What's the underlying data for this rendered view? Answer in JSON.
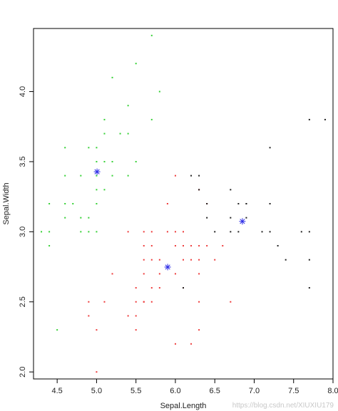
{
  "chart_data": {
    "type": "scatter",
    "xlabel": "Sepal.Length",
    "ylabel": "Sepal.Width",
    "xlim": [
      4.2,
      8.0
    ],
    "ylim": [
      1.95,
      4.45
    ],
    "xticks": [
      "4.5",
      "5.0",
      "5.5",
      "6.0",
      "6.5",
      "7.0",
      "7.5",
      "8.0"
    ],
    "yticks": [
      "2.0",
      "2.5",
      "3.0",
      "3.5",
      "4.0"
    ],
    "grid": false,
    "legend": "none",
    "colors": {
      "green": "#35d135",
      "red": "#ee3b3b",
      "black": "#222222",
      "center": "#2a2ae6"
    },
    "series": [
      {
        "color": "green",
        "points": [
          [
            5.7,
            4.4
          ],
          [
            5.5,
            4.2
          ],
          [
            5.2,
            4.1
          ],
          [
            5.8,
            4.0
          ],
          [
            5.4,
            3.9
          ],
          [
            5.7,
            3.8
          ],
          [
            5.1,
            3.8
          ],
          [
            5.3,
            3.7
          ],
          [
            5.4,
            3.7
          ],
          [
            5.1,
            3.7
          ],
          [
            4.6,
            3.6
          ],
          [
            5.0,
            3.6
          ],
          [
            4.9,
            3.6
          ],
          [
            5.2,
            3.5
          ],
          [
            5.1,
            3.5
          ],
          [
            5.0,
            3.5
          ],
          [
            5.5,
            3.5
          ],
          [
            4.6,
            3.4
          ],
          [
            4.8,
            3.4
          ],
          [
            5.0,
            3.4
          ],
          [
            5.4,
            3.4
          ],
          [
            5.2,
            3.4
          ],
          [
            5.1,
            3.3
          ],
          [
            5.0,
            3.3
          ],
          [
            4.4,
            3.2
          ],
          [
            4.6,
            3.2
          ],
          [
            4.7,
            3.2
          ],
          [
            5.0,
            3.2
          ],
          [
            4.6,
            3.1
          ],
          [
            4.8,
            3.1
          ],
          [
            4.9,
            3.1
          ],
          [
            4.3,
            3.0
          ],
          [
            4.4,
            3.0
          ],
          [
            4.8,
            3.0
          ],
          [
            4.9,
            3.0
          ],
          [
            5.0,
            3.0
          ],
          [
            4.4,
            2.9
          ],
          [
            4.5,
            2.3
          ]
        ]
      },
      {
        "color": "red",
        "points": [
          [
            6.0,
            3.4
          ],
          [
            5.9,
            3.2
          ],
          [
            6.3,
            3.3
          ],
          [
            6.4,
            3.2
          ],
          [
            5.4,
            3.0
          ],
          [
            5.6,
            3.0
          ],
          [
            5.7,
            3.0
          ],
          [
            5.9,
            3.0
          ],
          [
            6.0,
            3.0
          ],
          [
            6.1,
            3.0
          ],
          [
            5.6,
            2.9
          ],
          [
            5.7,
            2.9
          ],
          [
            6.0,
            2.9
          ],
          [
            6.1,
            2.9
          ],
          [
            6.2,
            2.9
          ],
          [
            6.3,
            2.9
          ],
          [
            6.4,
            2.9
          ],
          [
            5.6,
            2.8
          ],
          [
            5.7,
            2.8
          ],
          [
            5.8,
            2.8
          ],
          [
            6.1,
            2.8
          ],
          [
            6.2,
            2.8
          ],
          [
            6.3,
            2.8
          ],
          [
            6.5,
            2.8
          ],
          [
            5.2,
            2.7
          ],
          [
            5.6,
            2.7
          ],
          [
            5.8,
            2.7
          ],
          [
            6.0,
            2.7
          ],
          [
            6.3,
            2.7
          ],
          [
            5.5,
            2.6
          ],
          [
            5.7,
            2.6
          ],
          [
            5.8,
            2.6
          ],
          [
            6.1,
            2.6
          ],
          [
            4.9,
            2.5
          ],
          [
            5.1,
            2.5
          ],
          [
            5.5,
            2.5
          ],
          [
            5.6,
            2.5
          ],
          [
            5.7,
            2.5
          ],
          [
            6.3,
            2.5
          ],
          [
            4.9,
            2.4
          ],
          [
            5.5,
            2.4
          ],
          [
            5.0,
            2.3
          ],
          [
            5.5,
            2.3
          ],
          [
            6.3,
            2.3
          ],
          [
            6.0,
            2.2
          ],
          [
            6.2,
            2.2
          ],
          [
            5.0,
            2.0
          ],
          [
            5.6,
            2.5
          ],
          [
            6.7,
            2.5
          ],
          [
            5.4,
            2.4
          ],
          [
            6.6,
            2.9
          ]
        ]
      },
      {
        "color": "black",
        "points": [
          [
            7.7,
            3.8
          ],
          [
            7.9,
            3.8
          ],
          [
            7.2,
            3.6
          ],
          [
            6.3,
            3.4
          ],
          [
            6.2,
            3.4
          ],
          [
            6.7,
            3.3
          ],
          [
            6.3,
            3.3
          ],
          [
            6.9,
            3.2
          ],
          [
            7.2,
            3.2
          ],
          [
            6.4,
            3.1
          ],
          [
            6.7,
            3.1
          ],
          [
            6.9,
            3.1
          ],
          [
            6.5,
            3.0
          ],
          [
            6.7,
            3.0
          ],
          [
            7.1,
            3.0
          ],
          [
            7.2,
            3.0
          ],
          [
            7.6,
            3.0
          ],
          [
            7.7,
            3.0
          ],
          [
            6.8,
            3.0
          ],
          [
            7.3,
            2.9
          ],
          [
            7.4,
            2.8
          ],
          [
            7.7,
            2.8
          ],
          [
            6.1,
            2.6
          ],
          [
            7.7,
            2.6
          ],
          [
            6.8,
            3.2
          ],
          [
            6.4,
            3.2
          ],
          [
            6.9,
            3.2
          ]
        ]
      }
    ],
    "centers": [
      {
        "x": 5.006,
        "y": 3.428
      },
      {
        "x": 5.902,
        "y": 2.748
      },
      {
        "x": 6.85,
        "y": 3.074
      }
    ]
  },
  "watermark": "https://blog.csdn.net/XIUXIU179"
}
